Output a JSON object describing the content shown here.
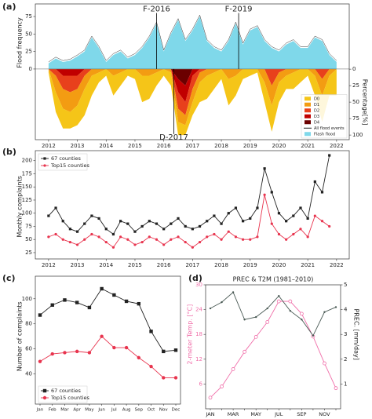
{
  "chart_data": [
    {
      "panel_label": "(a)",
      "type": "area",
      "x": [
        2012,
        2012.25,
        2012.5,
        2012.75,
        2013,
        2013.25,
        2013.5,
        2013.75,
        2014,
        2014.25,
        2014.5,
        2014.75,
        2015,
        2015.25,
        2015.5,
        2015.75,
        2016,
        2016.25,
        2016.5,
        2016.75,
        2017,
        2017.25,
        2017.5,
        2017.75,
        2018,
        2018.25,
        2018.5,
        2018.75,
        2019,
        2019.25,
        2019.5,
        2019.75,
        2020,
        2020.25,
        2020.5,
        2020.75,
        2021,
        2021.25,
        2021.5,
        2021.75,
        2022
      ],
      "xlim": [
        2011.54,
        2022.44
      ],
      "xticks": [
        2012,
        2013,
        2014,
        2015,
        2016,
        2017,
        2018,
        2019,
        2020,
        2021,
        2022
      ],
      "ylim": [
        -101,
        93
      ],
      "yticks": [
        0,
        25,
        50,
        75
      ],
      "ylabel": "Flood frequency",
      "y2lim": [
        107,
        -99
      ],
      "y2ticks": [
        0,
        25,
        50,
        75,
        100
      ],
      "y2label": "Percentage[%]",
      "legend": "lower right",
      "series": [
        {
          "name": "D0",
          "kind": "stack",
          "axis": "y2",
          "color": "#f5c518",
          "values": [
            5,
            30,
            30,
            25,
            30,
            40,
            30,
            15,
            10,
            30,
            20,
            10,
            15,
            40,
            35,
            20,
            10,
            20,
            20,
            15,
            20,
            30,
            35,
            25,
            15,
            40,
            30,
            15,
            10,
            5,
            30,
            40,
            30,
            20,
            25,
            20,
            10,
            30,
            40,
            30,
            40
          ]
        },
        {
          "name": "D1",
          "kind": "stack",
          "axis": "y2",
          "color": "#f39c12",
          "values": [
            0,
            25,
            30,
            30,
            25,
            20,
            10,
            5,
            0,
            10,
            5,
            0,
            0,
            10,
            10,
            5,
            0,
            5,
            20,
            15,
            20,
            15,
            10,
            5,
            0,
            15,
            10,
            0,
            0,
            0,
            20,
            30,
            15,
            10,
            5,
            0,
            0,
            10,
            25,
            10,
            0
          ]
        },
        {
          "name": "D2",
          "kind": "stack",
          "axis": "y2",
          "color": "#e8401c",
          "values": [
            0,
            10,
            20,
            25,
            20,
            10,
            0,
            0,
            0,
            0,
            0,
            0,
            0,
            0,
            0,
            0,
            0,
            0,
            25,
            20,
            20,
            5,
            0,
            0,
            0,
            0,
            0,
            0,
            0,
            0,
            0,
            25,
            5,
            0,
            0,
            0,
            0,
            0,
            15,
            0,
            0
          ]
        },
        {
          "name": "D3",
          "kind": "stack",
          "axis": "y2",
          "color": "#c00000",
          "values": [
            0,
            0,
            10,
            10,
            10,
            0,
            0,
            0,
            0,
            0,
            0,
            0,
            0,
            0,
            0,
            0,
            0,
            0,
            20,
            25,
            10,
            0,
            0,
            0,
            0,
            0,
            0,
            0,
            0,
            0,
            0,
            0,
            0,
            0,
            0,
            0,
            0,
            0,
            0,
            0,
            0
          ]
        },
        {
          "name": "D4",
          "kind": "stack",
          "axis": "y2",
          "color": "#6b0000",
          "values": [
            0,
            0,
            0,
            0,
            0,
            0,
            0,
            0,
            0,
            0,
            0,
            0,
            0,
            0,
            0,
            0,
            0,
            0,
            15,
            25,
            0,
            0,
            0,
            0,
            0,
            0,
            0,
            0,
            0,
            0,
            0,
            0,
            0,
            0,
            0,
            0,
            0,
            0,
            0,
            0,
            0
          ]
        },
        {
          "name": "All flood events",
          "kind": "line",
          "color": "#000000",
          "values": [
            10,
            17,
            12,
            14,
            20,
            27,
            47,
            32,
            12,
            22,
            27,
            17,
            22,
            32,
            47,
            67,
            27,
            52,
            72,
            42,
            57,
            77,
            42,
            32,
            27,
            42,
            67,
            37,
            57,
            62,
            42,
            32,
            27,
            37,
            42,
            32,
            32,
            47,
            42,
            22,
            12
          ]
        },
        {
          "name": "Flash flood",
          "kind": "area",
          "color": "#7fd8ea",
          "values": [
            8,
            15,
            10,
            12,
            18,
            25,
            45,
            30,
            10,
            20,
            25,
            15,
            20,
            30,
            45,
            65,
            25,
            50,
            70,
            40,
            55,
            75,
            40,
            30,
            25,
            40,
            65,
            35,
            55,
            60,
            40,
            30,
            25,
            35,
            40,
            30,
            30,
            45,
            40,
            20,
            10
          ]
        }
      ],
      "annotations": [
        {
          "text": "F-2016",
          "x": 2015.75,
          "y": 80
        },
        {
          "text": "D-2017",
          "x": 2016.35,
          "y": -93
        },
        {
          "text": "F-2019",
          "x": 2018.6,
          "y": 80
        }
      ]
    },
    {
      "panel_label": "(b)",
      "type": "line",
      "x": [
        2012,
        2012.25,
        2012.5,
        2012.75,
        2013,
        2013.25,
        2013.5,
        2013.75,
        2014,
        2014.25,
        2014.5,
        2014.75,
        2015,
        2015.25,
        2015.5,
        2015.75,
        2016,
        2016.25,
        2016.5,
        2016.75,
        2017,
        2017.25,
        2017.5,
        2017.75,
        2018,
        2018.25,
        2018.5,
        2018.75,
        2019,
        2019.25,
        2019.5,
        2019.75,
        2020,
        2020.25,
        2020.5,
        2020.75,
        2021,
        2021.25,
        2021.5,
        2021.75
      ],
      "xlim": [
        2011.54,
        2022.44
      ],
      "xticks": [
        2012,
        2013,
        2014,
        2015,
        2016,
        2017,
        2018,
        2019,
        2020,
        2021,
        2022
      ],
      "ylim": [
        13,
        219
      ],
      "yticks": [
        25,
        50,
        75,
        100,
        125,
        150,
        175,
        200
      ],
      "ylabel": "Monthly complaints",
      "legend": "upper left",
      "series": [
        {
          "name": "67 counties",
          "kind": "line",
          "marker": "square",
          "color": "#222222",
          "values": [
            95,
            110,
            85,
            70,
            65,
            80,
            95,
            90,
            70,
            60,
            85,
            80,
            65,
            75,
            85,
            80,
            70,
            80,
            90,
            75,
            70,
            75,
            85,
            95,
            80,
            100,
            110,
            85,
            90,
            110,
            185,
            140,
            100,
            85,
            95,
            110,
            90,
            160,
            140,
            210
          ]
        },
        {
          "name": "Top15 counties",
          "kind": "line",
          "marker": "circle",
          "color": "#e8344e",
          "values": [
            55,
            60,
            50,
            45,
            40,
            50,
            60,
            55,
            45,
            35,
            55,
            50,
            40,
            45,
            55,
            50,
            40,
            50,
            55,
            45,
            35,
            45,
            55,
            60,
            50,
            65,
            55,
            50,
            50,
            55,
            135,
            80,
            60,
            50,
            60,
            70,
            55,
            95,
            85,
            75
          ]
        }
      ]
    },
    {
      "panel_label": "(c)",
      "type": "line",
      "categories": [
        "Jan",
        "Feb",
        "Mar",
        "Apr",
        "May",
        "Jun",
        "Jul",
        "Aug",
        "Sep",
        "Oct",
        "Nov",
        "Dec"
      ],
      "ylim": [
        16,
        118
      ],
      "yticks": [
        40,
        60,
        80,
        100
      ],
      "ylabel": "Number of complaints",
      "legend": "lower left",
      "series": [
        {
          "name": "67 counties",
          "kind": "line",
          "marker": "square",
          "color": "#222222",
          "values": [
            87,
            95,
            99,
            97,
            93,
            108,
            103,
            98,
            96,
            74,
            58,
            59
          ]
        },
        {
          "name": "Top15 counties",
          "kind": "line",
          "marker": "circle",
          "color": "#e8344e",
          "values": [
            50,
            56,
            57,
            58,
            57,
            70,
            61,
            61,
            53,
            46,
            37,
            37
          ]
        }
      ]
    },
    {
      "panel_label": "(d)",
      "type": "line",
      "title": "PREC & T2M (1981–2010)",
      "categories": [
        "JAN",
        null,
        "MAR",
        null,
        "MAY",
        null,
        "JUL",
        null,
        "SEP",
        null,
        "NOV",
        null
      ],
      "ylim": [
        0,
        30
      ],
      "yticks": [
        6,
        12,
        18,
        24,
        30
      ],
      "ylabel": "2-meter Temp. [°C]",
      "ylabel_color": "#f06ea9",
      "y2lim": [
        0,
        5
      ],
      "y2ticks": [
        1,
        2,
        3,
        4,
        5
      ],
      "y2label": "PREC. [mm/day]",
      "series": [
        {
          "name": "T2M",
          "kind": "line",
          "marker": "circle-open",
          "color": "#f06ea9",
          "values": [
            2.7,
            5.4,
            9.6,
            13.8,
            17.4,
            21,
            26,
            26,
            23,
            17.5,
            11,
            5
          ]
        },
        {
          "name": "PREC",
          "kind": "line",
          "axis": "y2",
          "marker": "dot",
          "color": "#4a5a55",
          "values": [
            4.05,
            4.3,
            4.7,
            3.6,
            3.7,
            4.05,
            4.55,
            3.95,
            3.6,
            2.95,
            3.9,
            4.1
          ]
        }
      ]
    }
  ]
}
